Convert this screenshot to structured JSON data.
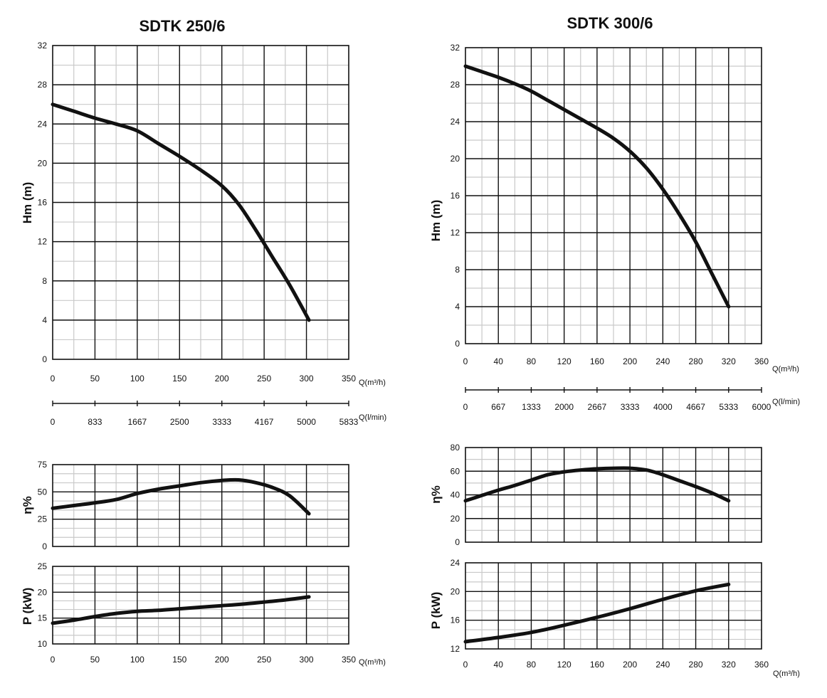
{
  "charts": [
    {
      "title": "SDTK 250/6",
      "head": {
        "ylabel": "Hm   (m)",
        "xlabel": "Q(m³/h)",
        "xlim": [
          0,
          350
        ],
        "ylim": [
          0,
          32
        ],
        "xticks": [
          "0",
          "50",
          "100",
          "150",
          "200",
          "250",
          "300",
          "350"
        ],
        "yticks": [
          "0",
          "4",
          "8",
          "12",
          "16",
          "20",
          "24",
          "28",
          "32"
        ],
        "secondary_label": "Q(l/min)",
        "secondary_ticks": [
          "0",
          "833",
          "1667",
          "2500",
          "3333",
          "4167",
          "5000",
          "5833"
        ]
      },
      "efficiency": {
        "ylabel": "η%",
        "ylim": [
          0,
          75
        ],
        "yticks": [
          "0",
          "25",
          "50",
          "75"
        ]
      },
      "power": {
        "ylabel": "P  (kW)",
        "xlabel": "Q(m³/h)",
        "ylim": [
          10,
          25
        ],
        "yticks": [
          "10",
          "15",
          "20",
          "25"
        ],
        "xticks": [
          "0",
          "50",
          "100",
          "150",
          "200",
          "250",
          "300",
          "350"
        ]
      }
    },
    {
      "title": "SDTK 300/6",
      "head": {
        "ylabel": "Hm   (m)",
        "xlabel": "Q(m³/h)",
        "xlim": [
          0,
          360
        ],
        "ylim": [
          0,
          32
        ],
        "xticks": [
          "0",
          "40",
          "80",
          "120",
          "160",
          "200",
          "240",
          "280",
          "320",
          "360"
        ],
        "yticks": [
          "0",
          "4",
          "8",
          "12",
          "16",
          "20",
          "24",
          "28",
          "32"
        ],
        "secondary_label": "Q(l/min)",
        "secondary_ticks": [
          "0",
          "667",
          "1333",
          "2000",
          "2667",
          "3333",
          "4000",
          "4667",
          "5333",
          "6000"
        ]
      },
      "efficiency": {
        "ylabel": "η%",
        "ylim": [
          0,
          80
        ],
        "yticks": [
          "0",
          "20",
          "40",
          "60",
          "80"
        ]
      },
      "power": {
        "ylabel": "P  (kW)",
        "xlabel": "Q(m³/h)",
        "ylim": [
          12,
          24
        ],
        "yticks": [
          "12",
          "16",
          "20",
          "24"
        ],
        "xticks": [
          "0",
          "40",
          "80",
          "120",
          "160",
          "200",
          "240",
          "280",
          "320",
          "360"
        ]
      }
    }
  ],
  "chart_data": [
    {
      "type": "line",
      "title": "SDTK 250/6",
      "xlabel": "Q(m³/h)",
      "ylabel": "Hm   (m)",
      "xlim": [
        0,
        350
      ],
      "ylim": [
        0,
        32
      ],
      "grid": true,
      "x": [
        0,
        25,
        50,
        75,
        100,
        125,
        150,
        175,
        200,
        220,
        240,
        260,
        280,
        303
      ],
      "y": [
        26,
        25.3,
        24.6,
        24,
        23.3,
        22,
        20.7,
        19.3,
        17.7,
        15.8,
        13.2,
        10.4,
        7.6,
        4
      ]
    },
    {
      "type": "line",
      "title": "",
      "xlabel": "",
      "ylabel": "η%",
      "xlim": [
        0,
        350
      ],
      "ylim": [
        0,
        75
      ],
      "grid": true,
      "x": [
        0,
        25,
        50,
        75,
        100,
        125,
        150,
        175,
        200,
        220,
        240,
        260,
        280,
        303
      ],
      "y": [
        35,
        37.5,
        40,
        43,
        48.5,
        52.5,
        55.5,
        58.5,
        60.5,
        61,
        58.5,
        54,
        46.5,
        30
      ]
    },
    {
      "type": "line",
      "title": "",
      "xlabel": "Q(m³/h)",
      "ylabel": "P  (kW)",
      "xlim": [
        0,
        350
      ],
      "ylim": [
        10,
        25
      ],
      "grid": true,
      "x": [
        0,
        25,
        50,
        75,
        100,
        125,
        150,
        175,
        200,
        225,
        250,
        275,
        303
      ],
      "y": [
        14,
        14.6,
        15.3,
        15.9,
        16.3,
        16.5,
        16.8,
        17.1,
        17.4,
        17.7,
        18.1,
        18.5,
        19.1
      ]
    },
    {
      "type": "line",
      "title": "SDTK 300/6",
      "xlabel": "Q(m³/h)",
      "ylabel": "Hm   (m)",
      "xlim": [
        0,
        360
      ],
      "ylim": [
        0,
        32
      ],
      "grid": true,
      "x": [
        0,
        20,
        40,
        60,
        80,
        100,
        120,
        140,
        160,
        180,
        200,
        220,
        240,
        260,
        280,
        300,
        320
      ],
      "y": [
        30,
        29.4,
        28.8,
        28.1,
        27.3,
        26.3,
        25.3,
        24.3,
        23.3,
        22.2,
        20.8,
        19,
        16.7,
        14,
        11,
        7.5,
        4
      ]
    },
    {
      "type": "line",
      "title": "",
      "xlabel": "",
      "ylabel": "η%",
      "xlim": [
        0,
        360
      ],
      "ylim": [
        0,
        80
      ],
      "grid": true,
      "x": [
        0,
        20,
        40,
        60,
        80,
        100,
        120,
        140,
        160,
        180,
        200,
        220,
        240,
        260,
        280,
        300,
        320
      ],
      "y": [
        35,
        39.5,
        44,
        48,
        52.5,
        57,
        59.5,
        61,
        62,
        62.5,
        62.5,
        61,
        57,
        52,
        47,
        41.5,
        35
      ]
    },
    {
      "type": "line",
      "title": "",
      "xlabel": "Q(m³/h)",
      "ylabel": "P  (kW)",
      "xlim": [
        0,
        360
      ],
      "ylim": [
        12,
        24
      ],
      "grid": true,
      "x": [
        0,
        40,
        80,
        120,
        160,
        200,
        240,
        280,
        320
      ],
      "y": [
        13,
        13.6,
        14.3,
        15.3,
        16.4,
        17.6,
        18.9,
        20.1,
        21
      ]
    }
  ]
}
